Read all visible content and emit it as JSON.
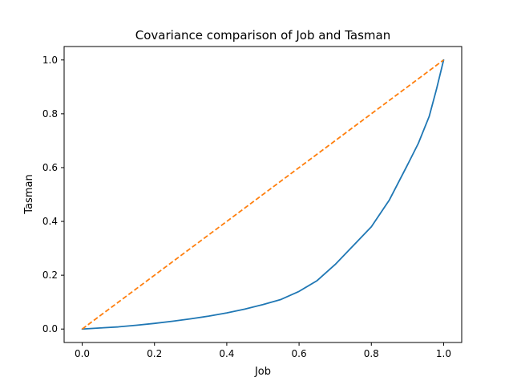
{
  "chart_data": {
    "type": "line",
    "title": "Covariance comparison of Job and Tasman",
    "xlabel": "Job",
    "ylabel": "Tasman",
    "xlim": [
      -0.05,
      1.05
    ],
    "ylim": [
      -0.05,
      1.05
    ],
    "xticks": [
      "0.0",
      "0.2",
      "0.4",
      "0.6",
      "0.8",
      "1.0"
    ],
    "yticks": [
      "0.0",
      "0.2",
      "0.4",
      "0.6",
      "0.8",
      "1.0"
    ],
    "grid": false,
    "legend": "none",
    "series": [
      {
        "color": "#1f77b4",
        "style": "solid",
        "x": [
          0.0,
          0.05,
          0.1,
          0.15,
          0.2,
          0.25,
          0.3,
          0.35,
          0.4,
          0.45,
          0.5,
          0.55,
          0.6,
          0.65,
          0.7,
          0.75,
          0.8,
          0.85,
          0.9,
          0.93,
          0.96,
          0.98,
          1.0
        ],
        "y": [
          0.0,
          0.004,
          0.008,
          0.014,
          0.021,
          0.029,
          0.038,
          0.048,
          0.06,
          0.074,
          0.091,
          0.11,
          0.14,
          0.18,
          0.24,
          0.31,
          0.38,
          0.48,
          0.61,
          0.69,
          0.79,
          0.89,
          1.0
        ]
      },
      {
        "color": "#ff7f0e",
        "style": "dashed",
        "x": [
          0.0,
          1.0
        ],
        "y": [
          0.0,
          1.0
        ]
      }
    ]
  }
}
